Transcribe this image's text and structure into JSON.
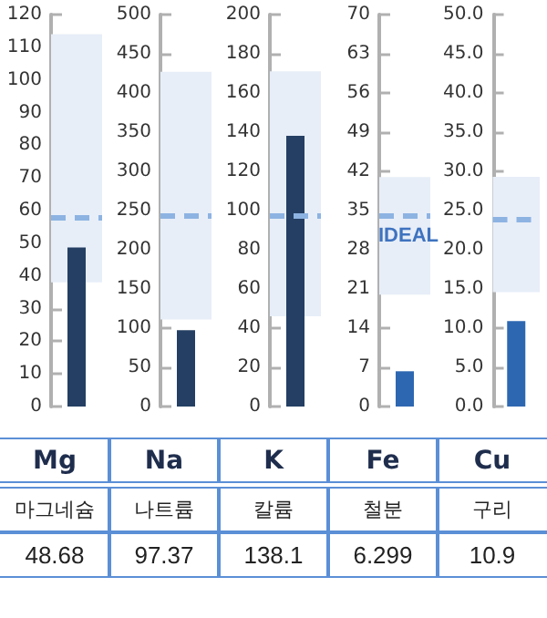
{
  "chart_data": [
    {
      "type": "bar",
      "categories": [
        "Mg"
      ],
      "xlabel": "마그네슘",
      "values": [
        48.68
      ],
      "annotations": [
        "48.68"
      ],
      "color": "#243f63",
      "ylim": [
        0,
        120
      ],
      "yticks": [
        0,
        10,
        20,
        30,
        40,
        50,
        60,
        70,
        80,
        90,
        100,
        110,
        120
      ],
      "grid": false,
      "bands": [
        {
          "axis": "y",
          "from": 38,
          "to": 114,
          "color": "#e7eef8"
        }
      ],
      "ref_lines": [
        {
          "axis": "y",
          "value": 58,
          "color": "#8db3e2",
          "line_style": "dashed"
        }
      ]
    },
    {
      "type": "bar",
      "categories": [
        "Na"
      ],
      "xlabel": "나트륨",
      "values": [
        97.37
      ],
      "annotations": [
        "97.37"
      ],
      "color": "#243f63",
      "ylim": [
        0,
        500
      ],
      "yticks": [
        0,
        50,
        100,
        150,
        200,
        250,
        300,
        350,
        400,
        450,
        500
      ],
      "grid": false,
      "bands": [
        {
          "axis": "y",
          "from": 111,
          "to": 427,
          "color": "#e7eef8"
        }
      ],
      "ref_lines": [
        {
          "axis": "y",
          "value": 243,
          "color": "#8db3e2",
          "line_style": "dashed"
        }
      ]
    },
    {
      "type": "bar",
      "categories": [
        "K"
      ],
      "xlabel": "칼륨",
      "values": [
        138.1
      ],
      "annotations": [
        "138.1"
      ],
      "color": "#243f63",
      "ylim": [
        0,
        200
      ],
      "yticks": [
        0,
        20,
        40,
        60,
        80,
        100,
        120,
        140,
        160,
        180,
        200
      ],
      "grid": false,
      "bands": [
        {
          "axis": "y",
          "from": 46,
          "to": 171,
          "color": "#e7eef8"
        }
      ],
      "ref_lines": [
        {
          "axis": "y",
          "value": 97,
          "color": "#8db3e2",
          "line_style": "dashed"
        }
      ]
    },
    {
      "type": "bar",
      "categories": [
        "Fe"
      ],
      "xlabel": "철분",
      "values": [
        6.299
      ],
      "annotations": [
        "6.299"
      ],
      "color": "#2e67b1",
      "ylim": [
        0,
        70
      ],
      "yticks": [
        0,
        7,
        14,
        21,
        28,
        35,
        42,
        49,
        56,
        63,
        70
      ],
      "grid": false,
      "bands": [
        {
          "axis": "y",
          "from": 20,
          "to": 41,
          "color": "#e7eef8",
          "label": "IDEAL"
        }
      ],
      "ref_lines": [
        {
          "axis": "y",
          "value": 34,
          "color": "#8db3e2",
          "line_style": "dashed"
        }
      ]
    },
    {
      "type": "bar",
      "categories": [
        "Cu"
      ],
      "xlabel": "구리",
      "values": [
        10.9
      ],
      "annotations": [
        "10.9"
      ],
      "color": "#2e67b1",
      "ylim": [
        0,
        50
      ],
      "yticks": [
        {
          "value": 0,
          "label": "0.0"
        },
        {
          "value": 5,
          "label": "5.0"
        },
        {
          "value": 10,
          "label": "10.0"
        },
        {
          "value": 15,
          "label": "15.0"
        },
        {
          "value": 20,
          "label": "20.0"
        },
        {
          "value": 25,
          "label": "25.0"
        },
        {
          "value": 30,
          "label": "30.0"
        },
        {
          "value": 35,
          "label": "35.0"
        },
        {
          "value": 40,
          "label": "40.0"
        },
        {
          "value": 45,
          "label": "45.0"
        },
        {
          "value": 50,
          "label": "50.0"
        }
      ],
      "grid": false,
      "bands": [
        {
          "axis": "y",
          "from": 14.6,
          "to": 29.3,
          "color": "#e7eef8"
        }
      ],
      "ref_lines": [
        {
          "axis": "y",
          "value": 24,
          "color": "#8db3e2",
          "line_style": "dashed"
        }
      ]
    }
  ]
}
